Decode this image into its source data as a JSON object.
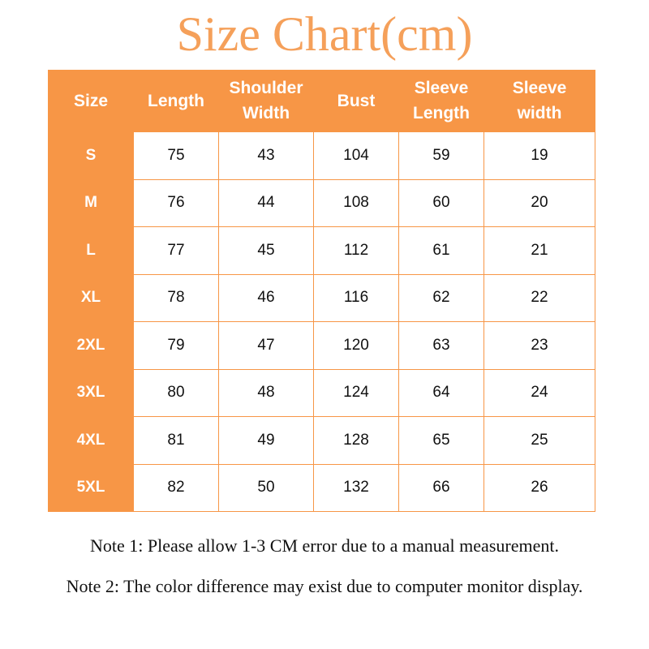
{
  "title": "Size Chart(cm)",
  "colors": {
    "accent": "#F79646",
    "title": "#F5A05A"
  },
  "table": {
    "headers": [
      [
        "Size"
      ],
      [
        "Length"
      ],
      [
        "Shoulder",
        "Width"
      ],
      [
        "Bust"
      ],
      [
        "Sleeve",
        "Length"
      ],
      [
        "Sleeve",
        "width"
      ]
    ],
    "rows": [
      [
        "S",
        "75",
        "43",
        "104",
        "59",
        "19"
      ],
      [
        "M",
        "76",
        "44",
        "108",
        "60",
        "20"
      ],
      [
        "L",
        "77",
        "45",
        "112",
        "61",
        "21"
      ],
      [
        "XL",
        "78",
        "46",
        "116",
        "62",
        "22"
      ],
      [
        "2XL",
        "79",
        "47",
        "120",
        "63",
        "23"
      ],
      [
        "3XL",
        "80",
        "48",
        "124",
        "64",
        "24"
      ],
      [
        "4XL",
        "81",
        "49",
        "128",
        "65",
        "25"
      ],
      [
        "5XL",
        "82",
        "50",
        "132",
        "66",
        "26"
      ]
    ]
  },
  "notes": [
    "Note 1: Please allow 1-3 CM error due to a manual measurement.",
    "Note 2: The color difference may exist due to computer monitor display."
  ]
}
